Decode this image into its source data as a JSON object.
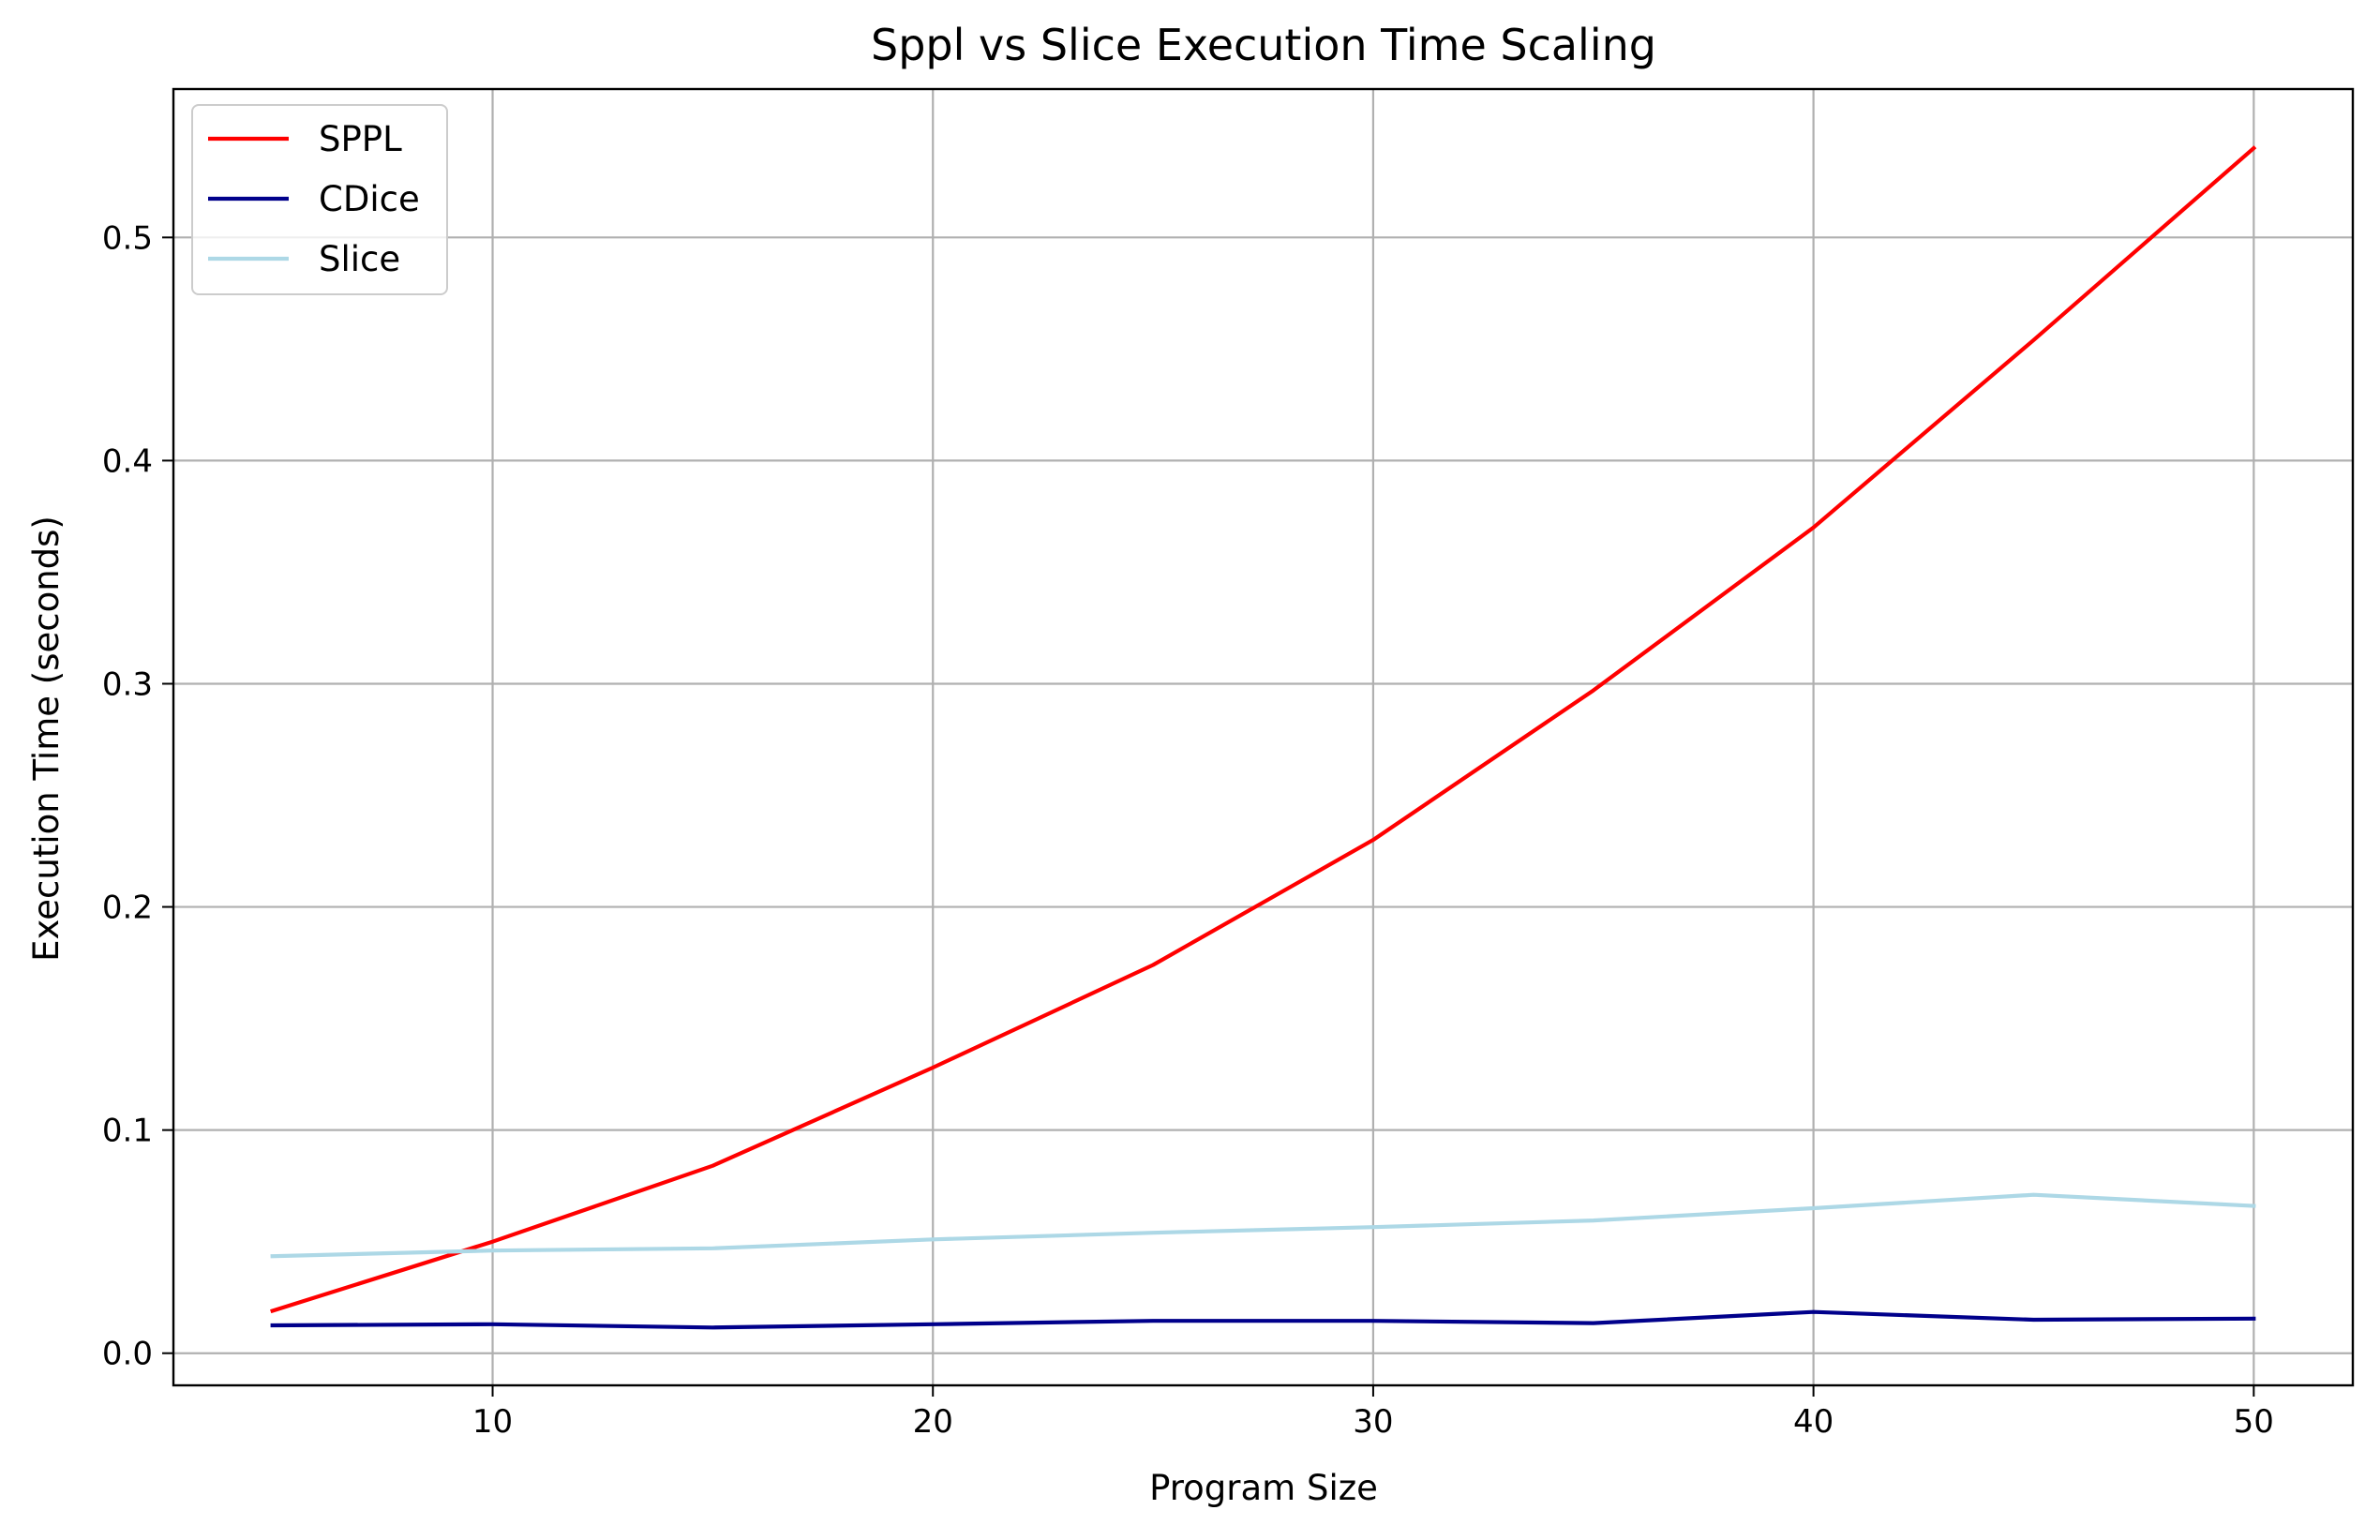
{
  "chart_data": {
    "type": "line",
    "title": "Sppl vs Slice Execution Time Scaling",
    "xlabel": "Program Size",
    "ylabel": "Execution Time (seconds)",
    "x": [
      5,
      10,
      15,
      20,
      25,
      30,
      35,
      40,
      45,
      50
    ],
    "xlim": [
      2.75,
      52.25
    ],
    "ylim": [
      -0.0144,
      0.5665
    ],
    "xticks": [
      10,
      20,
      30,
      40,
      50
    ],
    "yticks": [
      0.0,
      0.1,
      0.2,
      0.3,
      0.4,
      0.5
    ],
    "xtick_labels": [
      "10",
      "20",
      "30",
      "40",
      "50"
    ],
    "ytick_labels": [
      "0.0",
      "0.1",
      "0.2",
      "0.3",
      "0.4",
      "0.5"
    ],
    "grid": true,
    "legend_position": "top-left",
    "series": [
      {
        "name": "SPPL",
        "color": "#ff0000",
        "values": [
          0.019,
          0.05,
          0.084,
          0.128,
          0.174,
          0.23,
          0.297,
          0.37,
          0.454,
          0.54
        ]
      },
      {
        "name": "CDice",
        "color": "#00008b",
        "values": [
          0.0125,
          0.013,
          0.0115,
          0.013,
          0.0145,
          0.0145,
          0.0135,
          0.0185,
          0.015,
          0.0155
        ]
      },
      {
        "name": "Slice",
        "color": "#add8e6",
        "values": [
          0.0435,
          0.046,
          0.047,
          0.051,
          0.054,
          0.0565,
          0.0595,
          0.065,
          0.071,
          0.066
        ]
      }
    ]
  }
}
